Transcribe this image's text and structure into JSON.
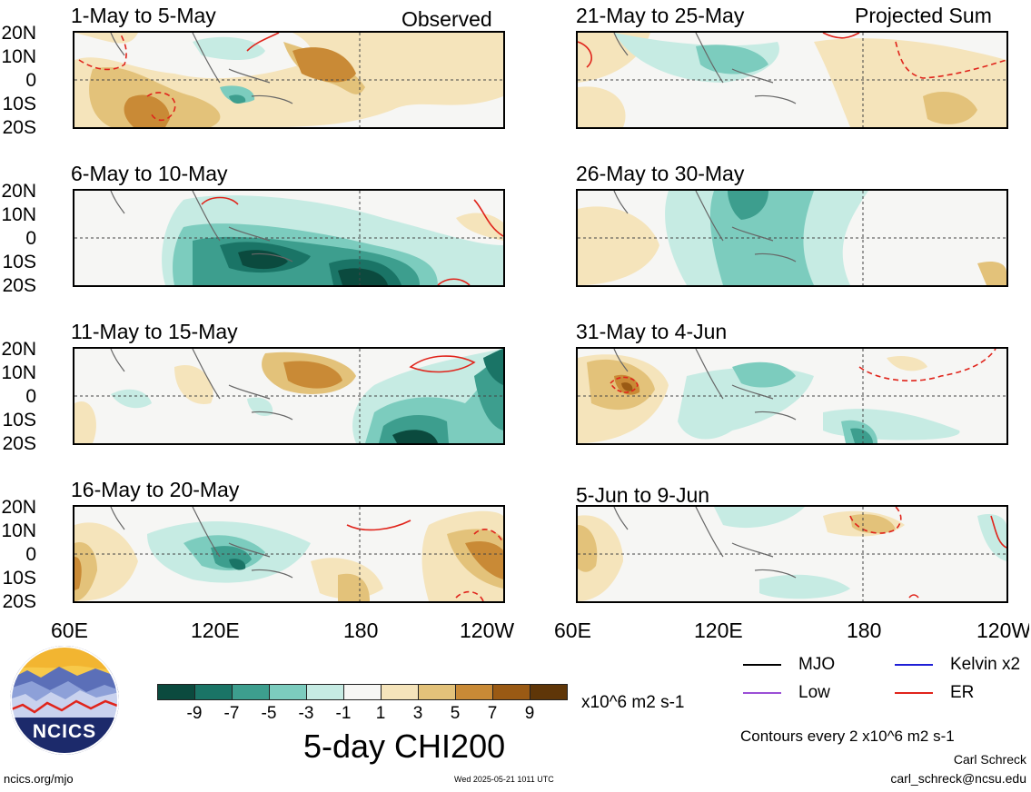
{
  "columns": {
    "observed_label": "Observed",
    "projected_label": "Projected Sum"
  },
  "panels": [
    {
      "title": "1-May to 5-May"
    },
    {
      "title": "6-May to 10-May"
    },
    {
      "title": "11-May to 15-May"
    },
    {
      "title": "16-May to 20-May"
    },
    {
      "title": "21-May to 25-May"
    },
    {
      "title": "26-May to 30-May"
    },
    {
      "title": "31-May to 4-Jun"
    },
    {
      "title": "5-Jun to 9-Jun"
    }
  ],
  "lat_labels": [
    "20N",
    "10N",
    "0",
    "10S",
    "20S"
  ],
  "lon_labels": [
    "60E",
    "120E",
    "180",
    "120W"
  ],
  "lon_labels_right": [
    "60E",
    "120E",
    "180",
    "120W"
  ],
  "colorbar": {
    "colors": [
      "#0b4a3e",
      "#1a7466",
      "#3d9e8e",
      "#7cccbe",
      "#c6ebe3",
      "#f6f6f4",
      "#f5e4bb",
      "#e3c27a",
      "#c98a36",
      "#9a5a14",
      "#5f3608"
    ],
    "ticks": [
      "-9",
      "-7",
      "-5",
      "-3",
      "-1",
      "1",
      "3",
      "5",
      "7",
      "9"
    ],
    "units": "x10^6 m2 s-1",
    "title": "5-day CHI200"
  },
  "legend": {
    "mjo": {
      "label": "MJO",
      "color": "#000000"
    },
    "kelvin": {
      "label": "Kelvin x2",
      "color": "#1f1fd6"
    },
    "low": {
      "label": "Low",
      "color": "#9b4fd6"
    },
    "er": {
      "label": "ER",
      "color": "#e0241b"
    },
    "contours_note": "Contours every 2 x10^6 m2 s-1",
    "author": "Carl Schreck",
    "email": "carl_schreck@ncsu.edu"
  },
  "logo": {
    "text": "NCICS"
  },
  "footer": {
    "url": "ncics.org/mjo",
    "timestamp": "Wed 2025-05-21 1011 UTC"
  },
  "colors": {
    "neg_strong": "#0b4a3e",
    "neg_mid": "#3d9e8e",
    "neg_light": "#c6ebe3",
    "pos_light": "#f5e4bb",
    "pos_mid": "#e3c27a",
    "pos_strong": "#c98a36",
    "er_contour": "#e0241b"
  }
}
